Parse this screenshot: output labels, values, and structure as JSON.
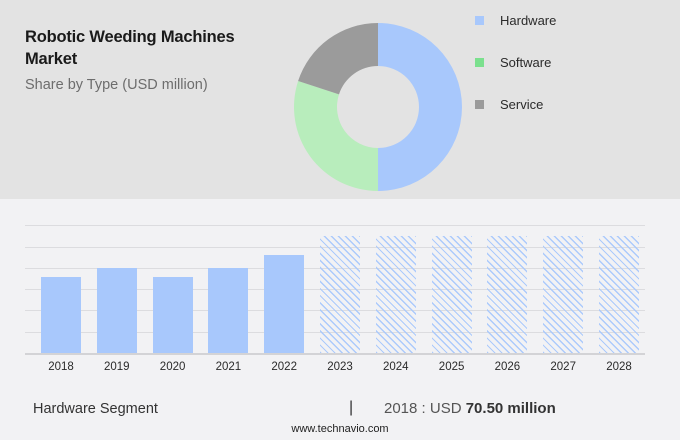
{
  "header": {
    "title": "Robotic Weeding Machines Market",
    "subtitle": "Share by Type (USD million)"
  },
  "legend": [
    {
      "label": "Hardware",
      "color": "#a8c8fc"
    },
    {
      "label": "Software",
      "color": "#7be08e"
    },
    {
      "label": "Service",
      "color": "#9b9b9b"
    }
  ],
  "footer": {
    "segment": "Hardware Segment",
    "separator": "|",
    "year_label": "2018 : USD ",
    "value_label": "70.50 million",
    "site": "www.technavio.com"
  },
  "chart_data": [
    {
      "type": "pie",
      "title": "Robotic Weeding Machines Market",
      "subtitle": "Share by Type (USD million)",
      "donut": true,
      "categories": [
        "Hardware",
        "Software",
        "Service"
      ],
      "values": [
        50,
        30,
        20
      ],
      "colors": [
        "#a8c8fc",
        "#b8edbc",
        "#9b9b9b"
      ],
      "legend_position": "right"
    },
    {
      "type": "bar",
      "title": "Hardware Segment",
      "categories": [
        "2018",
        "2019",
        "2020",
        "2021",
        "2022",
        "2023",
        "2024",
        "2025",
        "2026",
        "2027",
        "2028"
      ],
      "values": [
        70.5,
        78.9,
        70.9,
        79.3,
        90.9,
        null,
        null,
        null,
        null,
        null,
        null
      ],
      "forecast": [
        false,
        false,
        false,
        false,
        false,
        true,
        true,
        true,
        true,
        true,
        true
      ],
      "forecast_display_height": 108,
      "ylim": [
        0,
        138
      ],
      "grid": true,
      "xlabel": "",
      "ylabel": "",
      "annotation": "2018 : USD 70.50 million"
    }
  ]
}
